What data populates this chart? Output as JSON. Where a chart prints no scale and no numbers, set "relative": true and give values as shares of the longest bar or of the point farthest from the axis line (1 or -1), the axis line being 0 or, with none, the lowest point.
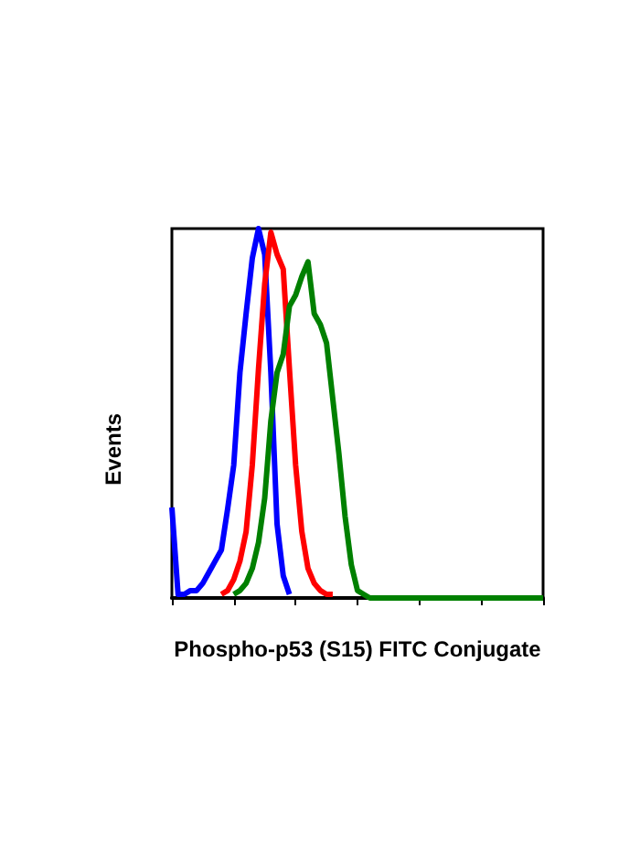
{
  "chart_data": {
    "type": "line",
    "relative": true,
    "xlabel": "Phospho-p53 (S15) FITC Conjugate",
    "ylabel": "Events",
    "grid": false,
    "line_style": "solid",
    "categories": [
      null,
      null,
      null,
      null,
      null,
      null,
      null,
      null,
      null,
      null,
      null,
      null,
      null,
      null,
      null,
      null,
      null,
      null,
      null,
      null,
      null,
      null,
      null,
      null,
      null,
      null,
      null,
      null,
      null,
      null,
      null,
      null,
      null,
      null,
      null,
      null,
      null,
      null,
      null,
      null,
      null,
      null,
      null,
      null,
      null,
      null,
      null,
      null,
      null,
      null,
      null,
      null,
      null,
      null,
      null,
      null,
      null,
      null,
      null,
      null,
      null
    ],
    "series": [
      {
        "color": "#0000ff",
        "values": [
          0.245,
          0.01,
          0.01,
          0.02,
          0.02,
          0.04,
          0.07,
          0.1,
          0.13,
          0.24,
          0.36,
          0.61,
          0.77,
          0.92,
          1,
          0.93,
          0.61,
          0.2,
          0.06,
          0.01,
          null,
          null,
          null,
          null,
          null,
          null,
          null,
          null,
          null,
          null,
          null,
          null,
          null,
          null,
          null,
          null,
          null,
          null,
          null,
          null,
          null,
          null,
          null,
          null,
          null,
          null,
          null,
          null,
          null,
          null,
          null,
          null,
          null,
          null,
          null,
          null,
          null,
          null,
          null,
          null,
          null
        ]
      },
      {
        "color": "#ff0000",
        "values": [
          null,
          null,
          null,
          null,
          null,
          null,
          null,
          null,
          0.01,
          0.02,
          0.05,
          0.1,
          0.18,
          0.36,
          0.62,
          0.85,
          0.99,
          0.93,
          0.89,
          0.62,
          0.36,
          0.18,
          0.08,
          0.04,
          0.02,
          0.01,
          0.01,
          null,
          null,
          null,
          null,
          null,
          null,
          null,
          null,
          null,
          null,
          null,
          null,
          null,
          null,
          null,
          null,
          null,
          null,
          null,
          null,
          null,
          null,
          null,
          null,
          null,
          null,
          null,
          null,
          null,
          null,
          null,
          null,
          null,
          null
        ]
      },
      {
        "color": "#008000",
        "values": [
          null,
          null,
          null,
          null,
          null,
          null,
          null,
          null,
          null,
          null,
          0.01,
          0.02,
          0.04,
          0.08,
          0.15,
          0.27,
          0.48,
          0.61,
          0.66,
          0.79,
          0.82,
          0.87,
          0.91,
          0.77,
          0.74,
          0.69,
          0.54,
          0.39,
          0.22,
          0.09,
          0.02,
          0.01,
          0,
          0,
          0,
          0,
          0,
          0,
          0,
          0,
          0,
          0,
          0,
          0,
          0,
          0,
          0,
          0,
          0,
          0,
          0,
          0,
          0,
          0,
          0,
          0,
          0,
          0,
          0,
          0,
          0
        ]
      }
    ]
  }
}
